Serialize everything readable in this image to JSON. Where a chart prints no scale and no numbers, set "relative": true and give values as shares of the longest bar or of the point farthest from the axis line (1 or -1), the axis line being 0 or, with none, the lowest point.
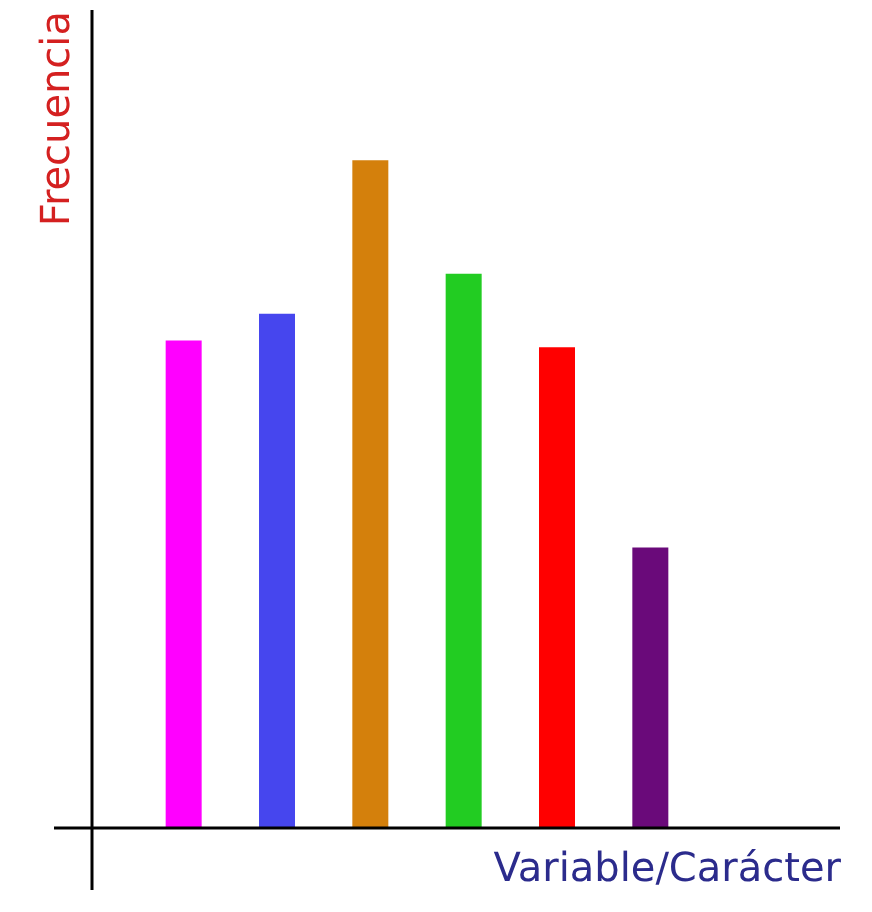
{
  "chart_data": {
    "type": "bar",
    "relative": true,
    "xlabel": "Variable/Carácter",
    "ylabel": "Frecuencia",
    "categories": [
      null,
      null,
      null,
      null,
      null,
      null
    ],
    "values": [
      0.73,
      0.77,
      1,
      0.83,
      0.72,
      0.42
    ],
    "colors": [
      "#ff00ff",
      "#4646ee",
      "#d4800c",
      "#22cc22",
      "#ff0000",
      "#6a0a7a"
    ],
    "grid": false
  }
}
